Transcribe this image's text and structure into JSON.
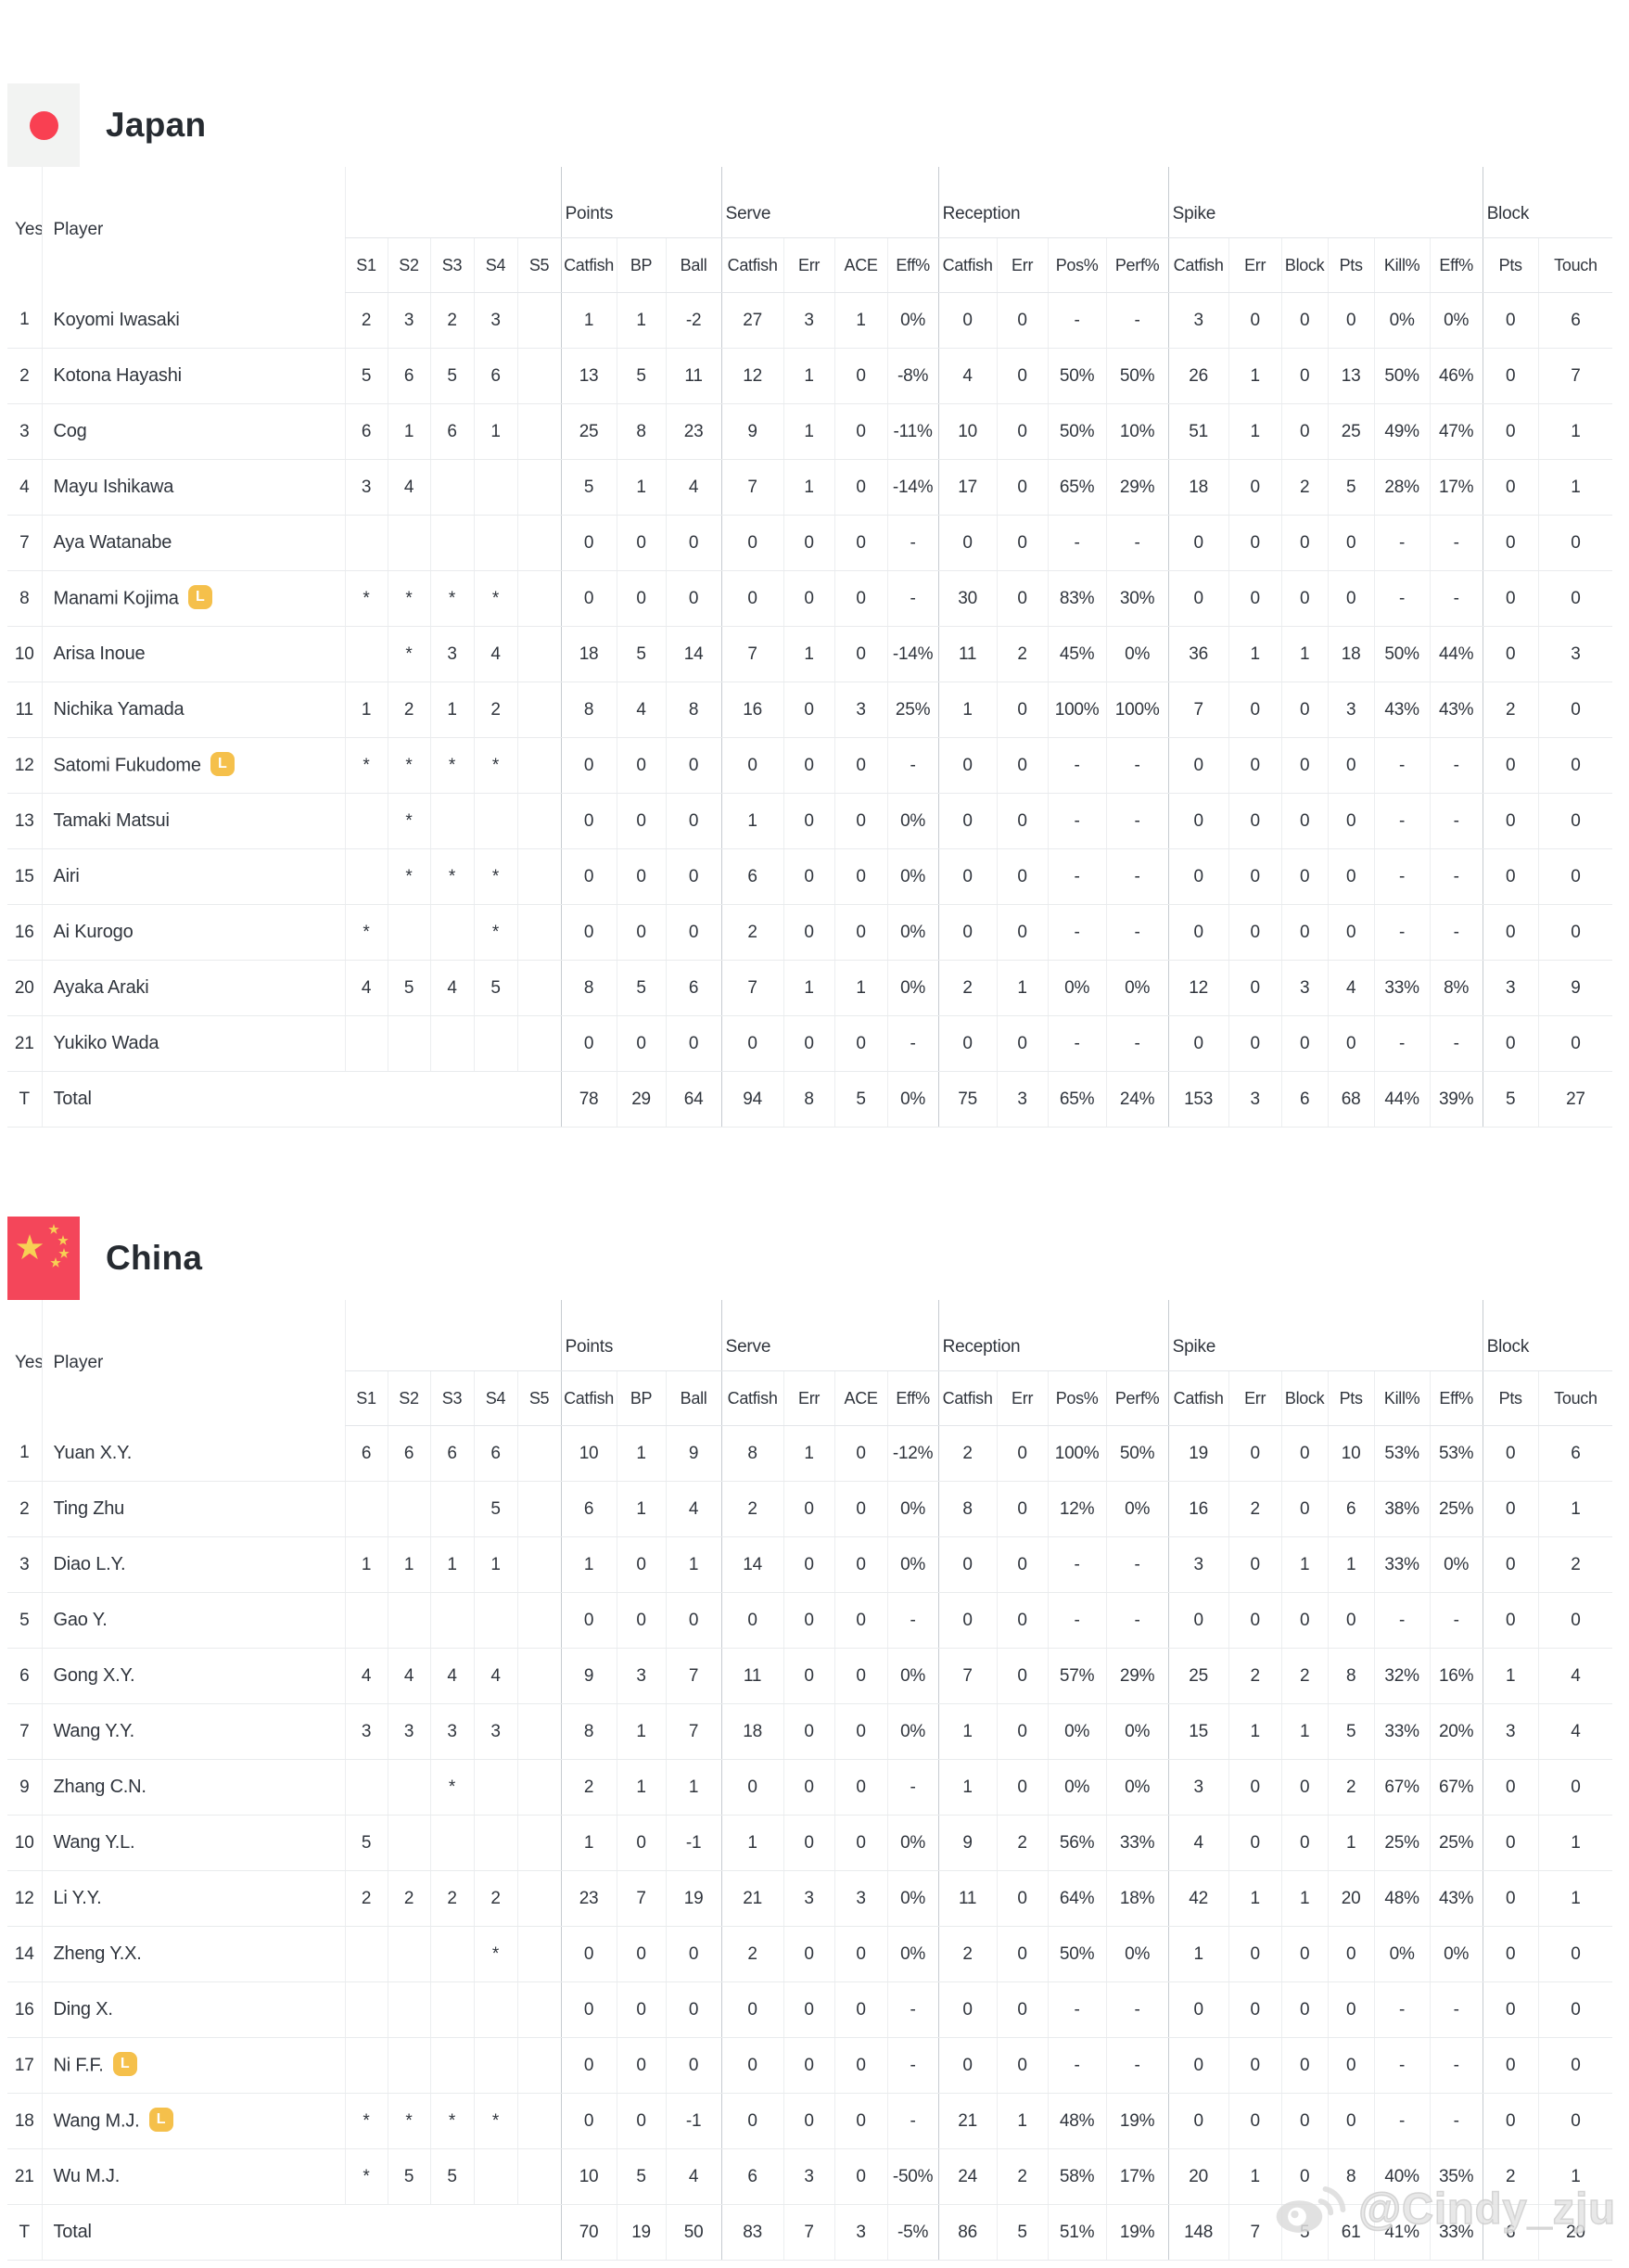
{
  "columns": {
    "yes": "Yes",
    "player": "Player",
    "sets": [
      "S1",
      "S2",
      "S3",
      "S4",
      "S5"
    ],
    "groups": [
      {
        "label": "Points",
        "cols": [
          "Catfish",
          "BP",
          "Ball"
        ]
      },
      {
        "label": "Serve",
        "cols": [
          "Catfish",
          "Err",
          "ACE",
          "Eff%"
        ]
      },
      {
        "label": "Reception",
        "cols": [
          "Catfish",
          "Err",
          "Pos%",
          "Perf%"
        ]
      },
      {
        "label": "Spike",
        "cols": [
          "Catfish",
          "Err",
          "Block",
          "Pts",
          "Kill%",
          "Eff%"
        ]
      },
      {
        "label": "Block",
        "cols": [
          "Pts",
          "Touch"
        ]
      }
    ]
  },
  "libero_badge_label": "L",
  "teams": [
    {
      "name": "Japan",
      "flag": "japan",
      "rows": [
        {
          "no": "1",
          "name": "Koyomi Iwasaki",
          "libero": false,
          "sets": [
            "2",
            "3",
            "2",
            "3",
            ""
          ],
          "stats": [
            "1",
            "1",
            "-2",
            "27",
            "3",
            "1",
            "0%",
            "0",
            "0",
            "-",
            "-",
            "3",
            "0",
            "0",
            "0",
            "0%",
            "0%",
            "0",
            "6"
          ]
        },
        {
          "no": "2",
          "name": "Kotona Hayashi",
          "libero": false,
          "sets": [
            "5",
            "6",
            "5",
            "6",
            ""
          ],
          "stats": [
            "13",
            "5",
            "11",
            "12",
            "1",
            "0",
            "-8%",
            "4",
            "0",
            "50%",
            "50%",
            "26",
            "1",
            "0",
            "13",
            "50%",
            "46%",
            "0",
            "7"
          ]
        },
        {
          "no": "3",
          "name": "Cog",
          "libero": false,
          "sets": [
            "6",
            "1",
            "6",
            "1",
            ""
          ],
          "stats": [
            "25",
            "8",
            "23",
            "9",
            "1",
            "0",
            "-11%",
            "10",
            "0",
            "50%",
            "10%",
            "51",
            "1",
            "0",
            "25",
            "49%",
            "47%",
            "0",
            "1"
          ]
        },
        {
          "no": "4",
          "name": "Mayu Ishikawa",
          "libero": false,
          "sets": [
            "3",
            "4",
            "",
            "",
            ""
          ],
          "stats": [
            "5",
            "1",
            "4",
            "7",
            "1",
            "0",
            "-14%",
            "17",
            "0",
            "65%",
            "29%",
            "18",
            "0",
            "2",
            "5",
            "28%",
            "17%",
            "0",
            "1"
          ]
        },
        {
          "no": "7",
          "name": "Aya Watanabe",
          "libero": false,
          "sets": [
            "",
            "",
            "",
            "",
            ""
          ],
          "stats": [
            "0",
            "0",
            "0",
            "0",
            "0",
            "0",
            "-",
            "0",
            "0",
            "-",
            "-",
            "0",
            "0",
            "0",
            "0",
            "-",
            "-",
            "0",
            "0"
          ]
        },
        {
          "no": "8",
          "name": "Manami Kojima",
          "libero": true,
          "sets": [
            "*",
            "*",
            "*",
            "*",
            ""
          ],
          "stats": [
            "0",
            "0",
            "0",
            "0",
            "0",
            "0",
            "-",
            "30",
            "0",
            "83%",
            "30%",
            "0",
            "0",
            "0",
            "0",
            "-",
            "-",
            "0",
            "0"
          ]
        },
        {
          "no": "10",
          "name": "Arisa Inoue",
          "libero": false,
          "sets": [
            "",
            "*",
            "3",
            "4",
            ""
          ],
          "stats": [
            "18",
            "5",
            "14",
            "7",
            "1",
            "0",
            "-14%",
            "11",
            "2",
            "45%",
            "0%",
            "36",
            "1",
            "1",
            "18",
            "50%",
            "44%",
            "0",
            "3"
          ]
        },
        {
          "no": "11",
          "name": "Nichika Yamada",
          "libero": false,
          "sets": [
            "1",
            "2",
            "1",
            "2",
            ""
          ],
          "stats": [
            "8",
            "4",
            "8",
            "16",
            "0",
            "3",
            "25%",
            "1",
            "0",
            "100%",
            "100%",
            "7",
            "0",
            "0",
            "3",
            "43%",
            "43%",
            "2",
            "0"
          ]
        },
        {
          "no": "12",
          "name": "Satomi Fukudome",
          "libero": true,
          "sets": [
            "*",
            "*",
            "*",
            "*",
            ""
          ],
          "stats": [
            "0",
            "0",
            "0",
            "0",
            "0",
            "0",
            "-",
            "0",
            "0",
            "-",
            "-",
            "0",
            "0",
            "0",
            "0",
            "-",
            "-",
            "0",
            "0"
          ]
        },
        {
          "no": "13",
          "name": "Tamaki Matsui",
          "libero": false,
          "sets": [
            "",
            "*",
            "",
            "",
            ""
          ],
          "stats": [
            "0",
            "0",
            "0",
            "1",
            "0",
            "0",
            "0%",
            "0",
            "0",
            "-",
            "-",
            "0",
            "0",
            "0",
            "0",
            "-",
            "-",
            "0",
            "0"
          ]
        },
        {
          "no": "15",
          "name": "Airi",
          "libero": false,
          "sets": [
            "",
            "*",
            "*",
            "*",
            ""
          ],
          "stats": [
            "0",
            "0",
            "0",
            "6",
            "0",
            "0",
            "0%",
            "0",
            "0",
            "-",
            "-",
            "0",
            "0",
            "0",
            "0",
            "-",
            "-",
            "0",
            "0"
          ]
        },
        {
          "no": "16",
          "name": "Ai Kurogo",
          "libero": false,
          "sets": [
            "*",
            "",
            "",
            "*",
            ""
          ],
          "stats": [
            "0",
            "0",
            "0",
            "2",
            "0",
            "0",
            "0%",
            "0",
            "0",
            "-",
            "-",
            "0",
            "0",
            "0",
            "0",
            "-",
            "-",
            "0",
            "0"
          ]
        },
        {
          "no": "20",
          "name": "Ayaka Araki",
          "libero": false,
          "sets": [
            "4",
            "5",
            "4",
            "5",
            ""
          ],
          "stats": [
            "8",
            "5",
            "6",
            "7",
            "1",
            "1",
            "0%",
            "2",
            "1",
            "0%",
            "0%",
            "12",
            "0",
            "3",
            "4",
            "33%",
            "8%",
            "3",
            "9"
          ]
        },
        {
          "no": "21",
          "name": "Yukiko Wada",
          "libero": false,
          "sets": [
            "",
            "",
            "",
            "",
            ""
          ],
          "stats": [
            "0",
            "0",
            "0",
            "0",
            "0",
            "0",
            "-",
            "0",
            "0",
            "-",
            "-",
            "0",
            "0",
            "0",
            "0",
            "-",
            "-",
            "0",
            "0"
          ]
        }
      ],
      "total": {
        "no": "T",
        "name": "Total",
        "stats": [
          "78",
          "29",
          "64",
          "94",
          "8",
          "5",
          "0%",
          "75",
          "3",
          "65%",
          "24%",
          "153",
          "3",
          "6",
          "68",
          "44%",
          "39%",
          "5",
          "27"
        ]
      }
    },
    {
      "name": "China",
      "flag": "china",
      "rows": [
        {
          "no": "1",
          "name": "Yuan X.Y.",
          "libero": false,
          "sets": [
            "6",
            "6",
            "6",
            "6",
            ""
          ],
          "stats": [
            "10",
            "1",
            "9",
            "8",
            "1",
            "0",
            "-12%",
            "2",
            "0",
            "100%",
            "50%",
            "19",
            "0",
            "0",
            "10",
            "53%",
            "53%",
            "0",
            "6"
          ]
        },
        {
          "no": "2",
          "name": "Ting Zhu",
          "libero": false,
          "sets": [
            "",
            "",
            "",
            "5",
            ""
          ],
          "stats": [
            "6",
            "1",
            "4",
            "2",
            "0",
            "0",
            "0%",
            "8",
            "0",
            "12%",
            "0%",
            "16",
            "2",
            "0",
            "6",
            "38%",
            "25%",
            "0",
            "1"
          ]
        },
        {
          "no": "3",
          "name": "Diao L.Y.",
          "libero": false,
          "sets": [
            "1",
            "1",
            "1",
            "1",
            ""
          ],
          "stats": [
            "1",
            "0",
            "1",
            "14",
            "0",
            "0",
            "0%",
            "0",
            "0",
            "-",
            "-",
            "3",
            "0",
            "1",
            "1",
            "33%",
            "0%",
            "0",
            "2"
          ]
        },
        {
          "no": "5",
          "name": "Gao Y.",
          "libero": false,
          "sets": [
            "",
            "",
            "",
            "",
            ""
          ],
          "stats": [
            "0",
            "0",
            "0",
            "0",
            "0",
            "0",
            "-",
            "0",
            "0",
            "-",
            "-",
            "0",
            "0",
            "0",
            "0",
            "-",
            "-",
            "0",
            "0"
          ]
        },
        {
          "no": "6",
          "name": "Gong X.Y.",
          "libero": false,
          "sets": [
            "4",
            "4",
            "4",
            "4",
            ""
          ],
          "stats": [
            "9",
            "3",
            "7",
            "11",
            "0",
            "0",
            "0%",
            "7",
            "0",
            "57%",
            "29%",
            "25",
            "2",
            "2",
            "8",
            "32%",
            "16%",
            "1",
            "4"
          ]
        },
        {
          "no": "7",
          "name": "Wang Y.Y.",
          "libero": false,
          "sets": [
            "3",
            "3",
            "3",
            "3",
            ""
          ],
          "stats": [
            "8",
            "1",
            "7",
            "18",
            "0",
            "0",
            "0%",
            "1",
            "0",
            "0%",
            "0%",
            "15",
            "1",
            "1",
            "5",
            "33%",
            "20%",
            "3",
            "4"
          ]
        },
        {
          "no": "9",
          "name": "Zhang C.N.",
          "libero": false,
          "sets": [
            "",
            "",
            "*",
            "",
            ""
          ],
          "stats": [
            "2",
            "1",
            "1",
            "0",
            "0",
            "0",
            "-",
            "1",
            "0",
            "0%",
            "0%",
            "3",
            "0",
            "0",
            "2",
            "67%",
            "67%",
            "0",
            "0"
          ]
        },
        {
          "no": "10",
          "name": "Wang Y.L.",
          "libero": false,
          "sets": [
            "5",
            "",
            "",
            "",
            ""
          ],
          "stats": [
            "1",
            "0",
            "-1",
            "1",
            "0",
            "0",
            "0%",
            "9",
            "2",
            "56%",
            "33%",
            "4",
            "0",
            "0",
            "1",
            "25%",
            "25%",
            "0",
            "1"
          ]
        },
        {
          "no": "12",
          "name": "Li Y.Y.",
          "libero": false,
          "sets": [
            "2",
            "2",
            "2",
            "2",
            ""
          ],
          "stats": [
            "23",
            "7",
            "19",
            "21",
            "3",
            "3",
            "0%",
            "11",
            "0",
            "64%",
            "18%",
            "42",
            "1",
            "1",
            "20",
            "48%",
            "43%",
            "0",
            "1"
          ]
        },
        {
          "no": "14",
          "name": "Zheng Y.X.",
          "libero": false,
          "sets": [
            "",
            "",
            "",
            "*",
            ""
          ],
          "stats": [
            "0",
            "0",
            "0",
            "2",
            "0",
            "0",
            "0%",
            "2",
            "0",
            "50%",
            "0%",
            "1",
            "0",
            "0",
            "0",
            "0%",
            "0%",
            "0",
            "0"
          ]
        },
        {
          "no": "16",
          "name": "Ding X.",
          "libero": false,
          "sets": [
            "",
            "",
            "",
            "",
            ""
          ],
          "stats": [
            "0",
            "0",
            "0",
            "0",
            "0",
            "0",
            "-",
            "0",
            "0",
            "-",
            "-",
            "0",
            "0",
            "0",
            "0",
            "-",
            "-",
            "0",
            "0"
          ]
        },
        {
          "no": "17",
          "name": "Ni F.F.",
          "libero": true,
          "sets": [
            "",
            "",
            "",
            "",
            ""
          ],
          "stats": [
            "0",
            "0",
            "0",
            "0",
            "0",
            "0",
            "-",
            "0",
            "0",
            "-",
            "-",
            "0",
            "0",
            "0",
            "0",
            "-",
            "-",
            "0",
            "0"
          ]
        },
        {
          "no": "18",
          "name": "Wang M.J.",
          "libero": true,
          "sets": [
            "*",
            "*",
            "*",
            "*",
            ""
          ],
          "stats": [
            "0",
            "0",
            "-1",
            "0",
            "0",
            "0",
            "-",
            "21",
            "1",
            "48%",
            "19%",
            "0",
            "0",
            "0",
            "0",
            "-",
            "-",
            "0",
            "0"
          ]
        },
        {
          "no": "21",
          "name": "Wu M.J.",
          "libero": false,
          "sets": [
            "*",
            "5",
            "5",
            "",
            ""
          ],
          "stats": [
            "10",
            "5",
            "4",
            "6",
            "3",
            "0",
            "-50%",
            "24",
            "2",
            "58%",
            "17%",
            "20",
            "1",
            "0",
            "8",
            "40%",
            "35%",
            "2",
            "1"
          ]
        }
      ],
      "total": {
        "no": "T",
        "name": "Total",
        "stats": [
          "70",
          "19",
          "50",
          "83",
          "7",
          "3",
          "-5%",
          "86",
          "5",
          "51%",
          "19%",
          "148",
          "7",
          "5",
          "61",
          "41%",
          "33%",
          "6",
          "20"
        ]
      }
    }
  ],
  "watermark": {
    "text": "@Cindy_zju",
    "icon": "weibo-icon"
  },
  "colors": {
    "japan_flag_bg": "#F2F3F2",
    "japan_sun_red": "#F94052",
    "china_flag_red": "#F4465A",
    "star_yellow": "#F7D154",
    "libero_badge_yellow": "#F5C04B",
    "text": "#30353D",
    "border_light": "#ECEEF0",
    "border_dark": "#C6CBD0",
    "watermark_gray": "#E4E4E4"
  }
}
